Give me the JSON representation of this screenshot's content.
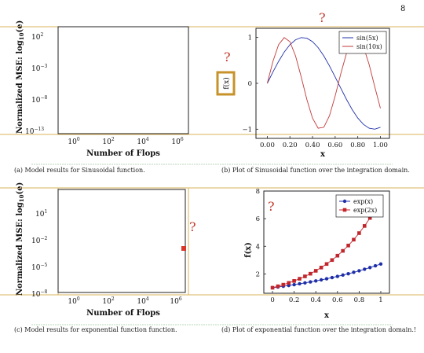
{
  "page_number": "8",
  "panels": [
    {
      "caption": "(a) Model results for Sinusoidal function.",
      "ylabel": "Normalized MSE: log",
      "ylabel_sub": "10",
      "ylabel_tail": "(e)",
      "xlabel": "Number of Flops",
      "yticks": [
        {
          "base": "10",
          "exp": "2"
        },
        {
          "base": "10",
          "exp": "−3"
        },
        {
          "base": "10",
          "exp": "−8"
        },
        {
          "base": "10",
          "exp": "−13"
        }
      ],
      "xticks": [
        {
          "base": "10",
          "exp": "0"
        },
        {
          "base": "10",
          "exp": "2"
        },
        {
          "base": "10",
          "exp": "4"
        },
        {
          "base": "10",
          "exp": "6"
        }
      ]
    },
    {
      "caption": "(b) Plot of Sinusoidal function over the integration domain.",
      "xlabel": "x",
      "ylabel": "f(x)",
      "question_marks": [
        "?",
        "?"
      ]
    },
    {
      "caption": "(c) Model results for exponential function function.",
      "ylabel": "Normalized MSE: log",
      "ylabel_sub": "10",
      "ylabel_tail": "(e)",
      "xlabel": "Number of Flops",
      "yticks": [
        {
          "base": "10",
          "exp": "1"
        },
        {
          "base": "10",
          "exp": "−2"
        },
        {
          "base": "10",
          "exp": "−5"
        },
        {
          "base": "10",
          "exp": "−8"
        }
      ],
      "xticks": [
        {
          "base": "10",
          "exp": "0"
        },
        {
          "base": "10",
          "exp": "2"
        },
        {
          "base": "10",
          "exp": "4"
        },
        {
          "base": "10",
          "exp": "6"
        }
      ],
      "question_marks": [
        "?"
      ]
    },
    {
      "caption": "(d) Plot of exponential function over the integration domain.!",
      "xlabel": "x",
      "ylabel": "f(x)",
      "question_marks": [
        "?"
      ]
    }
  ],
  "chart_data": [
    {
      "type": "line",
      "title": "",
      "xlabel": "x",
      "ylabel": "",
      "xlim": [
        -0.1,
        1.08
      ],
      "ylim": [
        -1.2,
        1.2
      ],
      "xticks": [
        "0.00",
        "0.20",
        "0.40",
        "0.60",
        "0.80",
        "1.00"
      ],
      "yticks": [
        "−1",
        "0",
        "1"
      ],
      "series": [
        {
          "name": "sin(5x)",
          "color": "#1f2fa8",
          "x": [
            0,
            0.05,
            0.1,
            0.15,
            0.2,
            0.25,
            0.3,
            0.35,
            0.4,
            0.45,
            0.5,
            0.55,
            0.6,
            0.65,
            0.7,
            0.75,
            0.8,
            0.85,
            0.9,
            0.95,
            1.0
          ],
          "y": [
            0,
            0.247,
            0.479,
            0.682,
            0.841,
            0.949,
            0.997,
            0.984,
            0.909,
            0.778,
            0.598,
            0.381,
            0.141,
            -0.108,
            -0.351,
            -0.572,
            -0.757,
            -0.895,
            -0.978,
            -0.999,
            -0.959
          ]
        },
        {
          "name": "sin(10x)",
          "color": "#c23a3a",
          "x": [
            0,
            0.05,
            0.1,
            0.15,
            0.2,
            0.25,
            0.3,
            0.35,
            0.4,
            0.45,
            0.5,
            0.55,
            0.6,
            0.65,
            0.7,
            0.75,
            0.8,
            0.85,
            0.9,
            0.95,
            1.0
          ],
          "y": [
            0,
            0.479,
            0.841,
            0.997,
            0.909,
            0.598,
            0.141,
            -0.351,
            -0.757,
            -0.978,
            -0.959,
            -0.706,
            -0.279,
            0.215,
            0.657,
            0.938,
            0.989,
            0.798,
            0.412,
            -0.075,
            -0.544
          ]
        }
      ],
      "legend": "top-right"
    },
    {
      "type": "line",
      "title": "",
      "xlabel": "x",
      "ylabel": "f(x)",
      "xlim": [
        -0.08,
        1.08
      ],
      "ylim": [
        0.6,
        8.0
      ],
      "xticks": [
        "0",
        "0.2",
        "0.4",
        "0.6",
        "0.8",
        "1"
      ],
      "yticks": [
        "2",
        "4",
        "6",
        "8"
      ],
      "series": [
        {
          "name": "exp(x)",
          "color": "#1f2fa8",
          "marker": "circle",
          "x": [
            0,
            0.05,
            0.1,
            0.15,
            0.2,
            0.25,
            0.3,
            0.35,
            0.4,
            0.45,
            0.5,
            0.55,
            0.6,
            0.65,
            0.7,
            0.75,
            0.8,
            0.85,
            0.9,
            0.95,
            1.0
          ],
          "y": [
            1.0,
            1.051,
            1.105,
            1.162,
            1.221,
            1.284,
            1.35,
            1.419,
            1.492,
            1.568,
            1.649,
            1.733,
            1.822,
            1.916,
            2.014,
            2.117,
            2.226,
            2.34,
            2.46,
            2.586,
            2.718
          ]
        },
        {
          "name": "exp(2x)",
          "color": "#c0262c",
          "marker": "square",
          "x": [
            0,
            0.05,
            0.1,
            0.15,
            0.2,
            0.25,
            0.3,
            0.35,
            0.4,
            0.45,
            0.5,
            0.55,
            0.6,
            0.65,
            0.7,
            0.75,
            0.8,
            0.85,
            0.9
          ],
          "y": [
            1.0,
            1.105,
            1.221,
            1.35,
            1.492,
            1.649,
            1.822,
            2.014,
            2.226,
            2.46,
            2.718,
            3.004,
            3.32,
            3.669,
            4.055,
            4.482,
            4.953,
            5.474,
            6.05
          ]
        }
      ],
      "legend": "top-left"
    }
  ]
}
